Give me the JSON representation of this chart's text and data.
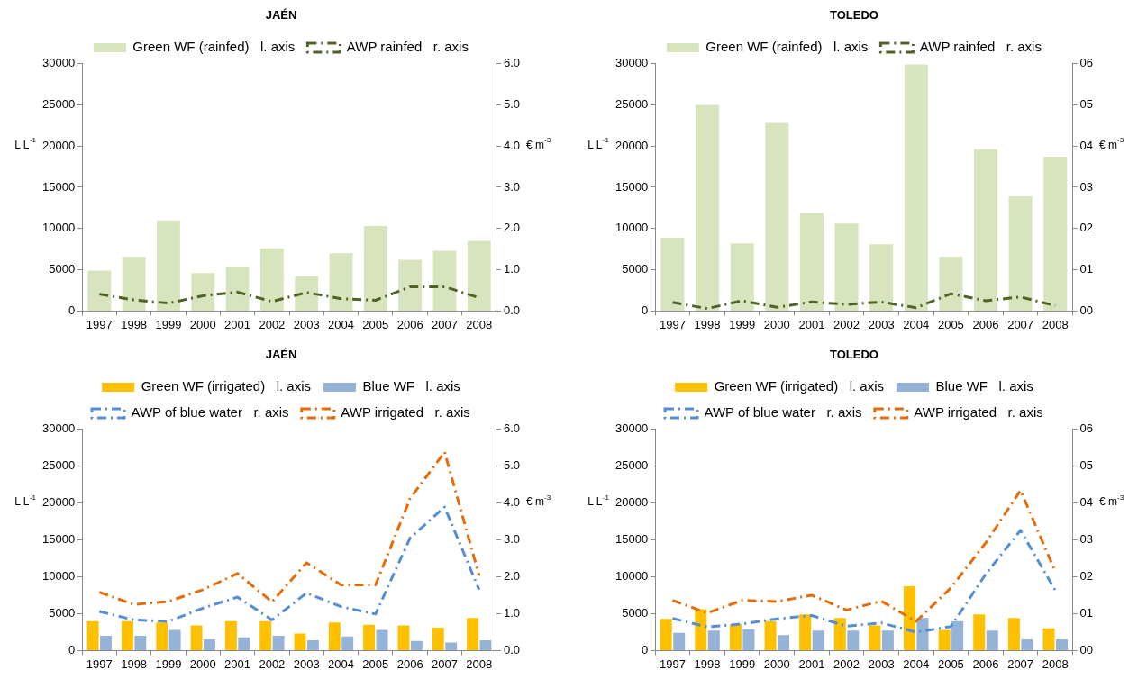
{
  "chart_data": [
    {
      "type": "bar",
      "title": "JAÉN",
      "categories": [
        "1997",
        "1998",
        "1999",
        "2000",
        "2001",
        "2002",
        "2003",
        "2004",
        "2005",
        "2006",
        "2007",
        "2008"
      ],
      "ylabel": "L L$^{-1}$",
      "y2label": "€ m$^{-3}$",
      "legend": "top",
      "grid": false,
      "marker": "none",
      "ylim": [
        0,
        30000
      ],
      "yticks": [
        0,
        5000,
        10000,
        15000,
        20000,
        25000,
        30000
      ],
      "y2lim": [
        0,
        6
      ],
      "y2ticks": [
        {
          "value": 0,
          "label": "0.0"
        },
        {
          "value": 1,
          "label": "1.0"
        },
        {
          "value": 2,
          "label": "2.0"
        },
        {
          "value": 3,
          "label": "3.0"
        },
        {
          "value": 4,
          "label": "4.0"
        },
        {
          "value": 5,
          "label": "5.0"
        },
        {
          "value": 6,
          "label": "6.0"
        }
      ],
      "series": [
        {
          "name": "Green WF (rainfed)   l. axis",
          "color": "#d7e4bd",
          "values": [
            4900,
            6600,
            11000,
            4600,
            5400,
            7600,
            4200,
            7000,
            10300,
            6200,
            7300,
            8500
          ]
        },
        {
          "name": "AWP rainfed   r. axis",
          "type": "line",
          "axis": "y2",
          "line_style": "dashed",
          "color": "#4f6228",
          "values": [
            0.41,
            0.27,
            0.19,
            0.37,
            0.46,
            0.23,
            0.45,
            0.3,
            0.26,
            0.59,
            0.59,
            0.32
          ]
        }
      ]
    },
    {
      "type": "bar",
      "title": "TOLEDO",
      "categories": [
        "1997",
        "1998",
        "1999",
        "2000",
        "2001",
        "2002",
        "2003",
        "2004",
        "2005",
        "2006",
        "2007",
        "2008"
      ],
      "ylabel": "L L$^{-1}$",
      "y2label": "€ m$^{-3}$",
      "legend": "top",
      "grid": false,
      "marker": "none",
      "ylim": [
        0,
        30000
      ],
      "yticks": [
        0,
        5000,
        10000,
        15000,
        20000,
        25000,
        30000
      ],
      "y2lim": [
        0,
        6
      ],
      "y2ticks": [
        {
          "value": 0,
          "label": "00"
        },
        {
          "value": 1,
          "label": "01"
        },
        {
          "value": 2,
          "label": "02"
        },
        {
          "value": 3,
          "label": "03"
        },
        {
          "value": 4,
          "label": "04"
        },
        {
          "value": 5,
          "label": "05"
        },
        {
          "value": 6,
          "label": "06"
        }
      ],
      "series": [
        {
          "name": "Green WF (rainfed)   l. axis",
          "color": "#d7e4bd",
          "values": [
            8900,
            25000,
            8200,
            22800,
            11900,
            10600,
            8100,
            29900,
            6600,
            19600,
            13900,
            18700
          ]
        },
        {
          "name": "AWP rainfed   r. axis",
          "type": "line",
          "axis": "y2",
          "line_style": "dashed",
          "color": "#4f6228",
          "values": [
            0.21,
            0.06,
            0.25,
            0.09,
            0.22,
            0.16,
            0.22,
            0.08,
            0.42,
            0.25,
            0.34,
            0.13
          ]
        }
      ]
    },
    {
      "type": "bar",
      "title": "JAÉN",
      "categories": [
        "1997",
        "1998",
        "1999",
        "2000",
        "2001",
        "2002",
        "2003",
        "2004",
        "2005",
        "2006",
        "2007",
        "2008"
      ],
      "ylabel": "L L$^{-1}$",
      "y2label": "€ m$^{-3}$",
      "legend": "top",
      "grid": false,
      "marker": "none",
      "ylim": [
        0,
        30000
      ],
      "yticks": [
        0,
        5000,
        10000,
        15000,
        20000,
        25000,
        30000
      ],
      "y2lim": [
        0,
        6
      ],
      "y2ticks": [
        {
          "value": 0,
          "label": "0.0"
        },
        {
          "value": 1,
          "label": "1.0"
        },
        {
          "value": 2,
          "label": "2.0"
        },
        {
          "value": 3,
          "label": "3.0"
        },
        {
          "value": 4,
          "label": "4.0"
        },
        {
          "value": 5,
          "label": "5.0"
        },
        {
          "value": 6,
          "label": "6.0"
        }
      ],
      "series": [
        {
          "name": "Green WF (irrigated)   l. axis",
          "color": "#ffc000",
          "values": [
            4000,
            4000,
            3800,
            3400,
            4000,
            4000,
            2300,
            3800,
            3500,
            3400,
            3100,
            4400
          ]
        },
        {
          "name": "Blue WF   l. axis",
          "color": "#95b3d7",
          "values": [
            2000,
            2000,
            2800,
            1500,
            1800,
            2000,
            1400,
            1900,
            2800,
            1300,
            1100,
            1400
          ]
        },
        {
          "name": "AWP of blue water   r. axis",
          "type": "line",
          "axis": "y2",
          "line_style": "dashed",
          "color": "#558ed5",
          "values": [
            1.06,
            0.83,
            0.79,
            1.15,
            1.45,
            0.83,
            1.56,
            1.19,
            0.99,
            3.05,
            3.89,
            1.65
          ]
        },
        {
          "name": "AWP irrigated   r. axis",
          "type": "line",
          "axis": "y2",
          "line_style": "dashed",
          "color": "#e46c0a",
          "values": [
            1.58,
            1.25,
            1.33,
            1.65,
            2.09,
            1.32,
            2.38,
            1.78,
            1.78,
            4.12,
            5.38,
            2.03
          ]
        }
      ]
    },
    {
      "type": "bar",
      "title": "TOLEDO",
      "categories": [
        "1997",
        "1998",
        "1999",
        "2000",
        "2001",
        "2002",
        "2003",
        "2004",
        "2005",
        "2006",
        "2007",
        "2008"
      ],
      "ylabel": "L L$^{-1}$",
      "y2label": "€ m$^{-3}$",
      "legend": "top",
      "grid": false,
      "marker": "none",
      "ylim": [
        0,
        30000
      ],
      "yticks": [
        0,
        5000,
        10000,
        15000,
        20000,
        25000,
        30000
      ],
      "y2lim": [
        0,
        6
      ],
      "y2ticks": [
        {
          "value": 0,
          "label": "00"
        },
        {
          "value": 1,
          "label": "01"
        },
        {
          "value": 2,
          "label": "02"
        },
        {
          "value": 3,
          "label": "03"
        },
        {
          "value": 4,
          "label": "04"
        },
        {
          "value": 5,
          "label": "05"
        },
        {
          "value": 6,
          "label": "06"
        }
      ],
      "series": [
        {
          "name": "Green WF (irrigated)   l. axis",
          "color": "#ffc000",
          "values": [
            4300,
            5600,
            3600,
            4000,
            4900,
            4400,
            3400,
            8700,
            2800,
            4900,
            4400,
            3000
          ]
        },
        {
          "name": "Blue WF   l. axis",
          "color": "#95b3d7",
          "values": [
            2400,
            2700,
            2900,
            2100,
            2700,
            2700,
            2700,
            4400,
            4000,
            2700,
            1500,
            1500
          ]
        },
        {
          "name": "AWP of blue water   r. axis",
          "type": "line",
          "axis": "y2",
          "line_style": "dashed",
          "color": "#558ed5",
          "values": [
            0.87,
            0.64,
            0.72,
            0.86,
            0.95,
            0.66,
            0.75,
            0.5,
            0.65,
            2.07,
            3.26,
            1.63
          ]
        },
        {
          "name": "AWP irrigated   r. axis",
          "type": "line",
          "axis": "y2",
          "line_style": "dashed",
          "color": "#e46c0a",
          "values": [
            1.36,
            1.02,
            1.36,
            1.33,
            1.5,
            1.1,
            1.34,
            0.79,
            1.7,
            2.92,
            4.34,
            2.14
          ]
        }
      ]
    }
  ]
}
